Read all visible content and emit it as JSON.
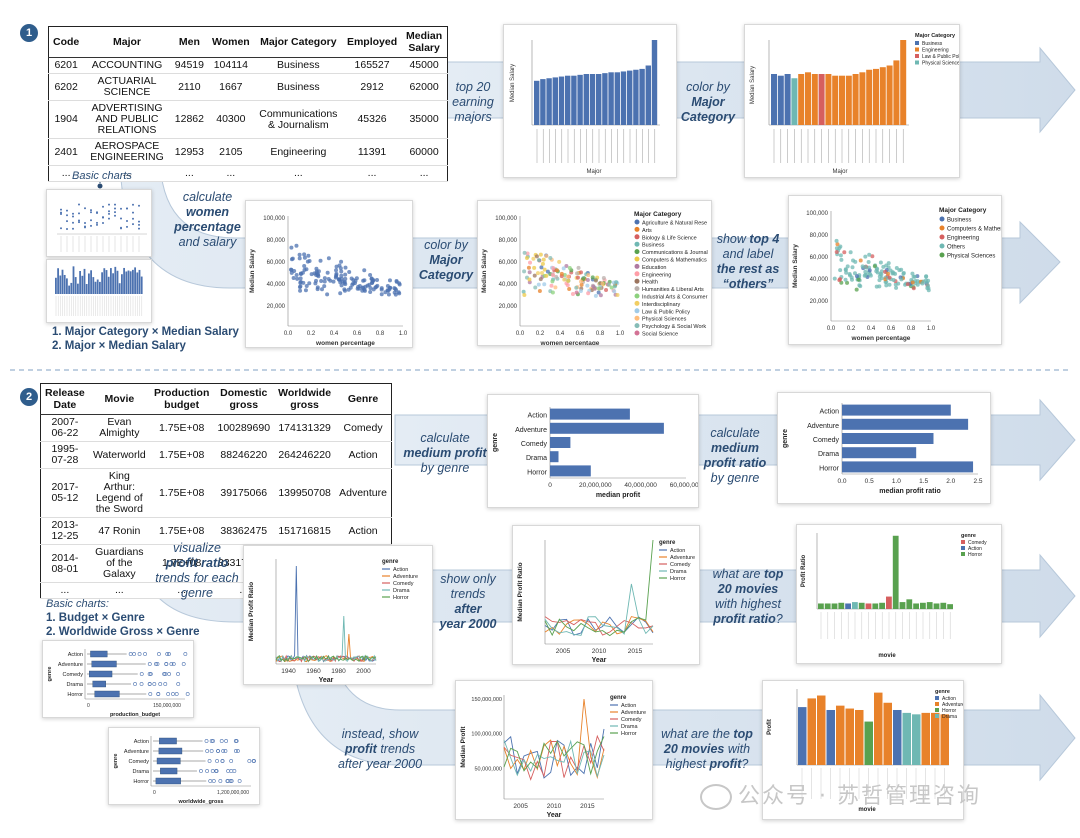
{
  "section1": {
    "badge": "1",
    "table": {
      "headers": [
        "Code",
        "Major",
        "Men",
        "Women",
        "Major Category",
        "Employed",
        "Median Salary"
      ],
      "rows": [
        [
          "6201",
          "ACCOUNTING",
          "94519",
          "104114",
          "Business",
          "165527",
          "45000"
        ],
        [
          "6202",
          "ACTUARIAL SCIENCE",
          "2110",
          "1667",
          "Business",
          "2912",
          "62000"
        ],
        [
          "1904",
          "ADVERTISING AND PUBLIC RELATIONS",
          "12862",
          "40300",
          "Communications & Journalism",
          "45326",
          "35000"
        ],
        [
          "2401",
          "AEROSPACE ENGINEERING",
          "12953",
          "2105",
          "Engineering",
          "11391",
          "60000"
        ],
        [
          "...",
          "...",
          "...",
          "...",
          "...",
          "...",
          "..."
        ]
      ]
    },
    "steps": {
      "top20": [
        "top 20",
        "earning",
        "majors"
      ],
      "colorMajor": [
        "color by",
        "Major",
        "Category"
      ],
      "womenPct": [
        "calculate",
        "women",
        "percentage",
        "and salary"
      ],
      "colorMajor2": [
        "color by",
        "Major",
        "Category"
      ],
      "top4": [
        "show",
        "top 4",
        "and label",
        "the rest as",
        "“others”"
      ]
    },
    "basicCharts": "Basic charts",
    "basicList": [
      "1. Major Category × Median Salary",
      "2. Major × Median Salary"
    ],
    "barYLabel": "Median Salary",
    "barXLabel": "Major",
    "scatterY": "Median Salary",
    "scatterX": "women percentage",
    "scatterYTicks": [
      "100,000",
      "80,000",
      "60,000",
      "40,000",
      "20,000"
    ],
    "scatterXTicks": [
      "0.0",
      "0.2",
      "0.4",
      "0.6",
      "0.8",
      "1.0"
    ],
    "legendTitle": "Major Category",
    "legend16": [
      "Agriculture & Natural Rese",
      "Arts",
      "Biology & Life Science",
      "Business",
      "Communications & Journal",
      "Computers & Mathematics",
      "Education",
      "Engineering",
      "Health",
      "Humanities & Liberal Arts",
      "Industrial Arts & Consumer",
      "Interdisciplinary",
      "Law & Public Policy",
      "Physical Sciences",
      "Psychology & Social Work",
      "Social Science"
    ],
    "legend5": [
      "Business",
      "Computers & Mathem",
      "Engineering",
      "Others",
      "Physical Sciences"
    ],
    "legend4": [
      "Business",
      "Engineering",
      "Law & Public Policy",
      "Physical Sciences"
    ],
    "colors": {
      "blue": "#4c72b0",
      "orange": "#e8822a",
      "red": "#d65f5f",
      "teal": "#6fb8b3",
      "green": "#59a14f"
    }
  },
  "section2": {
    "badge": "2",
    "table": {
      "headers": [
        "Release Date",
        "Movie",
        "Production budget",
        "Domestic gross",
        "Worldwide gross",
        "Genre"
      ],
      "rows": [
        [
          "2007-06-22",
          "Evan Almighty",
          "1.75E+08",
          "100289690",
          "174131329",
          "Comedy"
        ],
        [
          "1995-07-28",
          "Waterworld",
          "1.75E+08",
          "88246220",
          "264246220",
          "Action"
        ],
        [
          "2017-05-12",
          "King Arthur: Legend of the Sword",
          "1.75E+08",
          "39175066",
          "139950708",
          "Adventure"
        ],
        [
          "2013-12-25",
          "47 Ronin",
          "1.75E+08",
          "38362475",
          "151716815",
          "Action"
        ],
        [
          "2014-08-01",
          "Guardians of the Galaxy",
          "1.7E+08",
          "333172112",
          "771051335",
          "Action"
        ],
        [
          "...",
          "...",
          "...",
          "...",
          "...",
          "..."
        ]
      ]
    },
    "steps": {
      "medProfit": [
        "calculate",
        "medium profit",
        "by genre"
      ],
      "medRatio": [
        "calculate",
        "medium",
        "profit ratio",
        "by genre"
      ],
      "visRatio": [
        "visualize",
        "profit ratio",
        "trends for each",
        "genre"
      ],
      "after2000": [
        "show only",
        "trends",
        "after",
        "year 2000"
      ],
      "top20ratio": [
        "what are",
        "top",
        "20 movies",
        "with highest",
        "profit ratio",
        "?"
      ],
      "profitTrends": [
        "instead, show",
        "profit",
        "trends",
        "after year 2000"
      ],
      "top20profit": [
        "what are the",
        "top",
        "20 movies",
        "with",
        "highest",
        "profit",
        "?"
      ]
    },
    "basicCharts": "Basic charts:",
    "basicList": [
      "1. Budget × Genre",
      "2. Worldwide Gross × Genre"
    ],
    "genres": [
      "Action",
      "Adventure",
      "Comedy",
      "Drama",
      "Horror"
    ],
    "genreLabel": "genre",
    "profitBar": {
      "xlabel": "median profit",
      "ticks": [
        "0",
        "20,000,000",
        "40,000,000",
        "60,000,000"
      ],
      "values": [
        47,
        67,
        12,
        5,
        24
      ]
    },
    "ratioBar": {
      "xlabel": "median profit ratio",
      "ticks": [
        "0.0",
        "0.5",
        "1.0",
        "1.5",
        "2.0",
        "2.5"
      ],
      "values": [
        2.2,
        2.55,
        1.85,
        1.5,
        2.65
      ]
    },
    "lineA": {
      "ylabel": "Median Profit Ratio",
      "xlabel": "Year",
      "xticks": [
        "1940",
        "1960",
        "1980",
        "2000"
      ]
    },
    "lineB": {
      "ylabel": "Median Profit Ratio",
      "xlabel": "Year",
      "xticks": [
        "2005",
        "2010",
        "2015"
      ]
    },
    "lineC": {
      "ylabel": "Median Profit",
      "xlabel": "Year",
      "xticks": [
        "2005",
        "2010",
        "2015"
      ],
      "yticks": [
        "150,000,000",
        "100,000,000",
        "50,000,000"
      ]
    },
    "ratioChart": {
      "ylabel": "Profit Ratio",
      "xlabel": "movie"
    },
    "profitChart": {
      "ylabel": "Profit",
      "xlabel": "movie"
    },
    "boxA": {
      "xlabel": "production_budget",
      "tick": "150,000,000"
    },
    "boxB": {
      "xlabel": "worldwide_gross",
      "tick": "1,200,000,000"
    },
    "genreColors": [
      "#4c72b0",
      "#e8822a",
      "#d65f5f",
      "#6fb8b3",
      "#59a14f"
    ]
  },
  "watermark": "公众号 · 苏哲管理咨询"
}
